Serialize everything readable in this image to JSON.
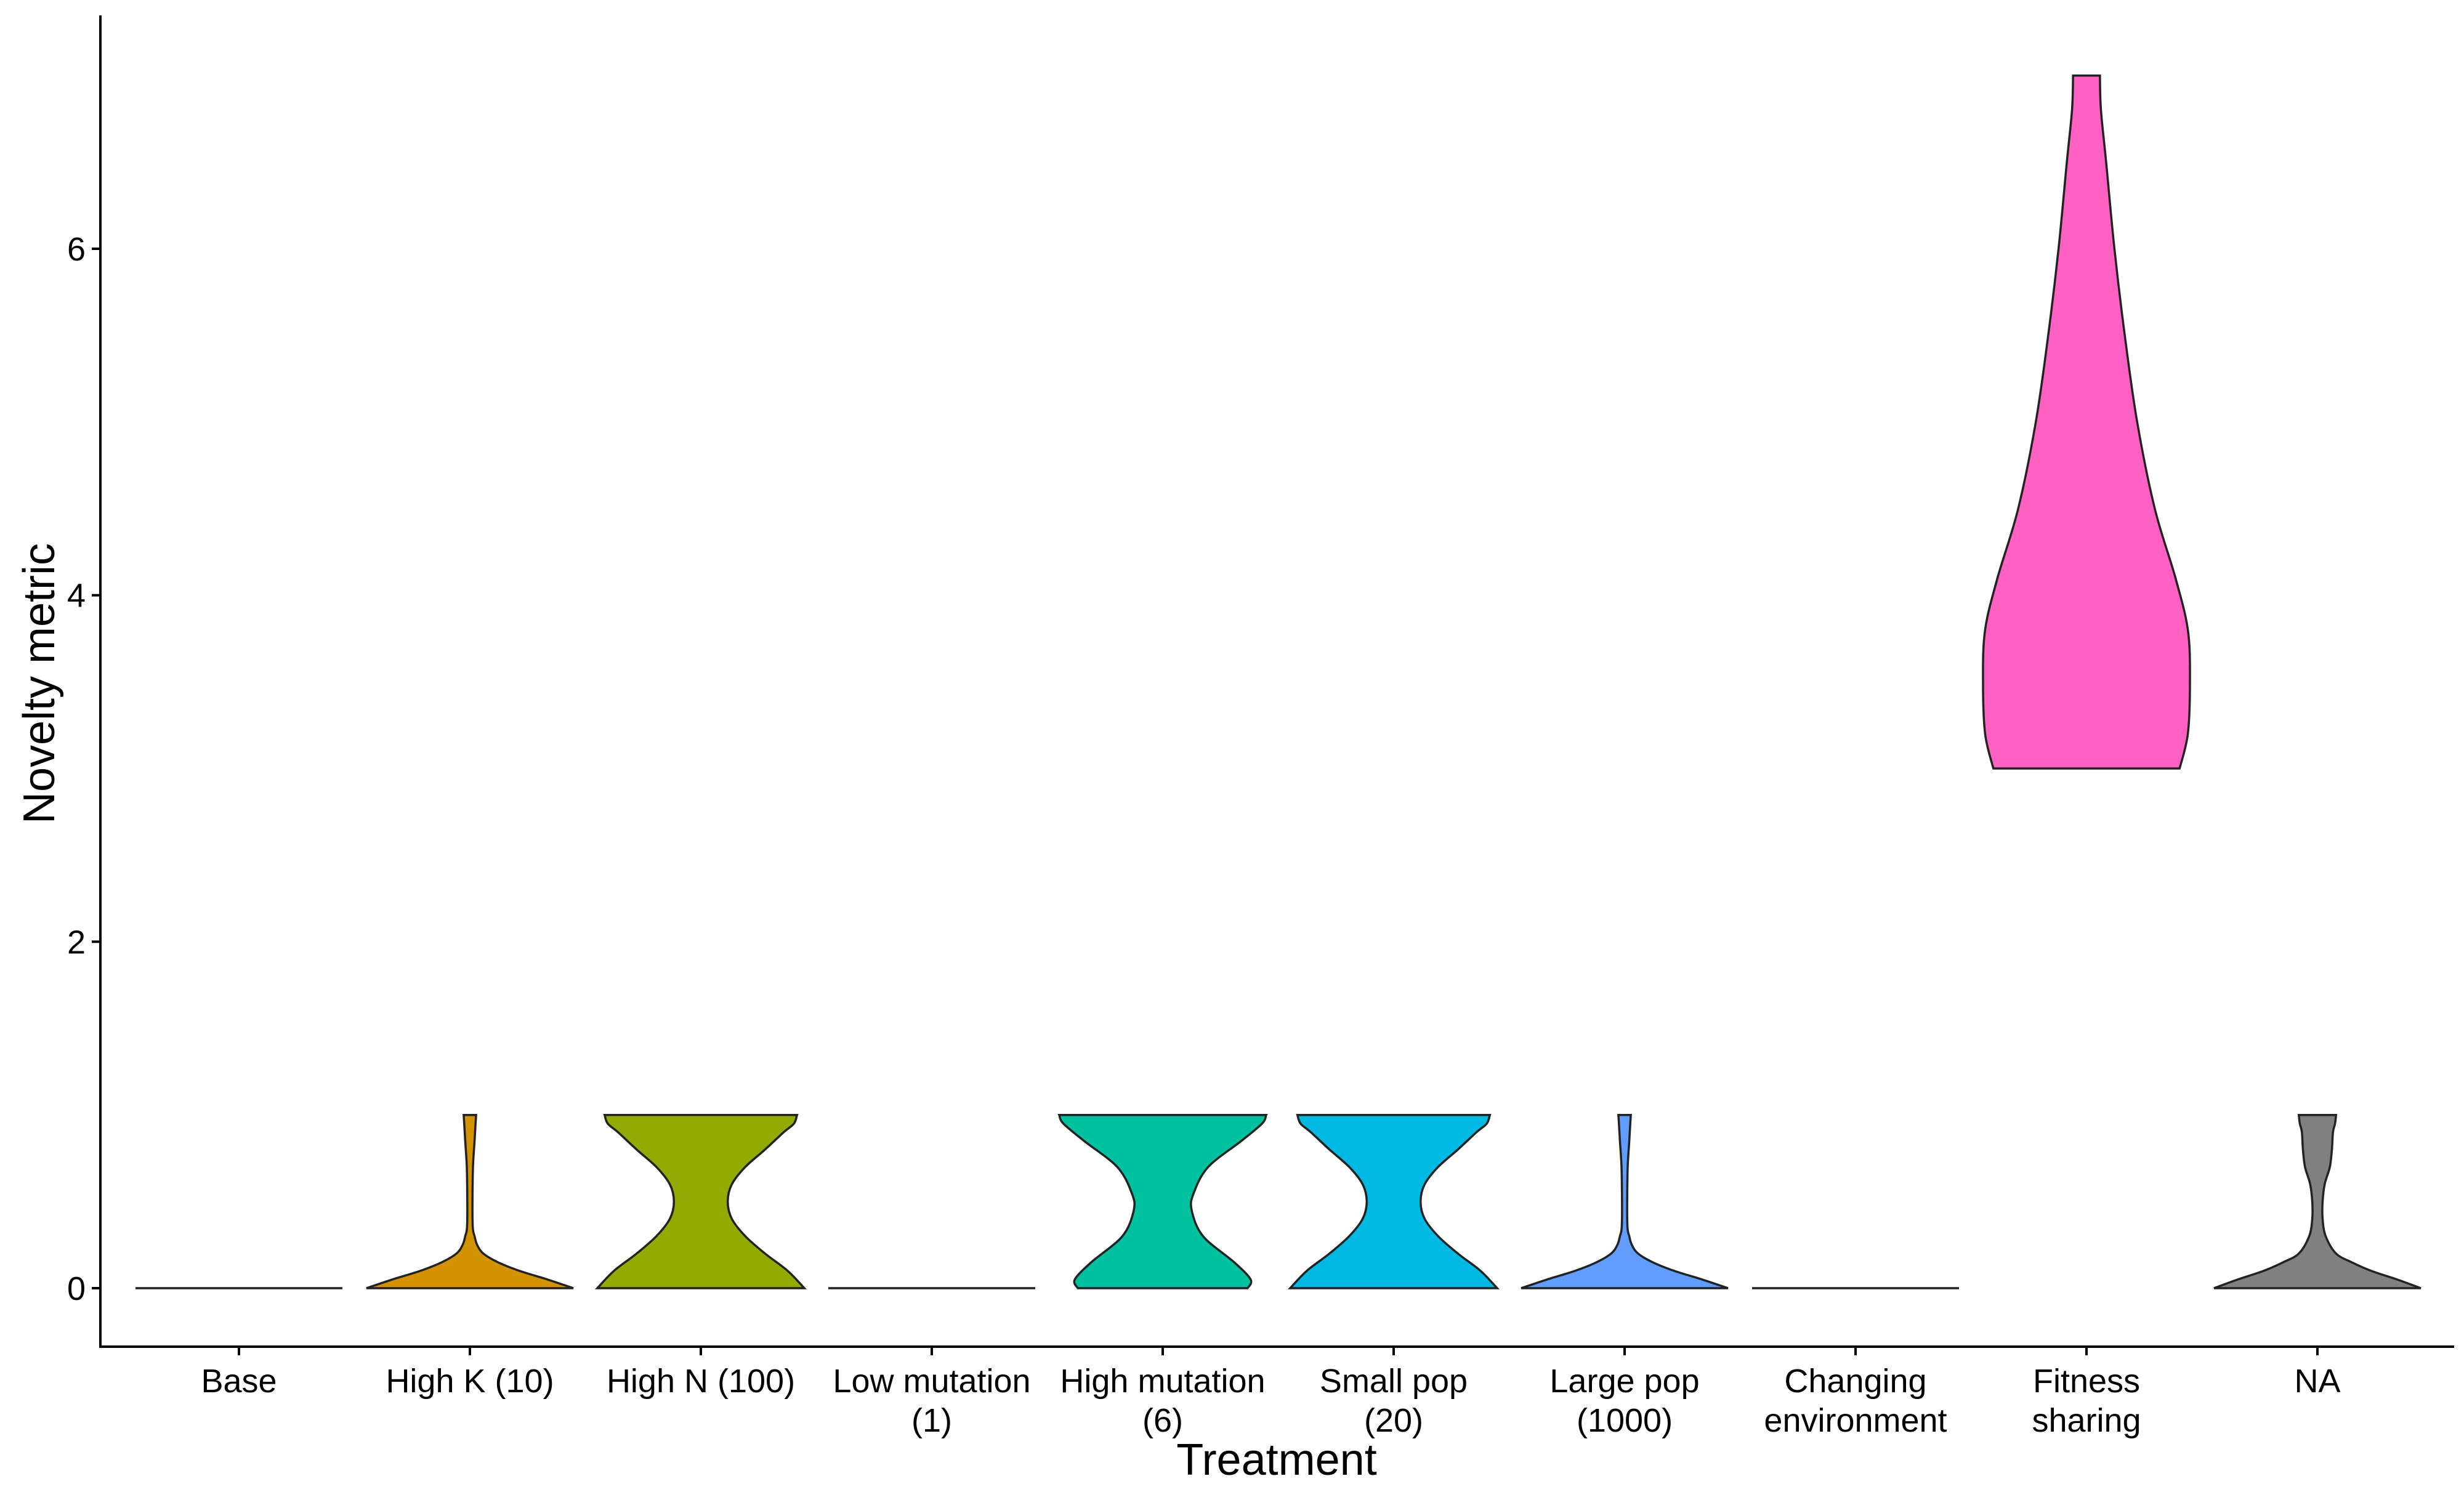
{
  "chart_data": {
    "type": "violin",
    "xlabel": "Treatment",
    "ylabel": "Novelty metric",
    "ylim": [
      -0.34,
      7.35
    ],
    "yticks": [
      0,
      2,
      4,
      6
    ],
    "ytick_labels": [
      "0",
      "2",
      "4",
      "6"
    ],
    "grid": false,
    "legend": "none",
    "categories": [
      {
        "label_lines": [
          "Base"
        ],
        "color": "#F8766D",
        "min": 0,
        "max": 0,
        "density": [
          [
            0,
            1.0
          ]
        ]
      },
      {
        "label_lines": [
          "High K (10)"
        ],
        "color": "#D39200",
        "min": 0,
        "max": 1,
        "density": [
          [
            0,
            1.0
          ],
          [
            0.05,
            0.75
          ],
          [
            0.1,
            0.48
          ],
          [
            0.15,
            0.27
          ],
          [
            0.2,
            0.13
          ],
          [
            0.25,
            0.07
          ],
          [
            0.3,
            0.045
          ],
          [
            0.35,
            0.028
          ],
          [
            0.5,
            0.025
          ],
          [
            0.7,
            0.03
          ],
          [
            0.85,
            0.045
          ],
          [
            0.95,
            0.055
          ],
          [
            1.0,
            0.06
          ]
        ]
      },
      {
        "label_lines": [
          "High N (100)"
        ],
        "color": "#93AA00",
        "min": 0,
        "max": 1,
        "density": [
          [
            0,
            1.0
          ],
          [
            0.1,
            0.84
          ],
          [
            0.2,
            0.62
          ],
          [
            0.3,
            0.43
          ],
          [
            0.4,
            0.3
          ],
          [
            0.5,
            0.26
          ],
          [
            0.6,
            0.3
          ],
          [
            0.7,
            0.43
          ],
          [
            0.8,
            0.62
          ],
          [
            0.9,
            0.8
          ],
          [
            0.95,
            0.9
          ],
          [
            1.0,
            0.93
          ]
        ]
      },
      {
        "label_lines": [
          "Low mutation",
          "(1)"
        ],
        "color": "#00BA38",
        "min": 0,
        "max": 0,
        "density": [
          [
            0,
            1.0
          ]
        ]
      },
      {
        "label_lines": [
          "High mutation",
          "(6)"
        ],
        "color": "#00C19F",
        "min": 0,
        "max": 1,
        "density": [
          [
            0,
            0.82
          ],
          [
            0.05,
            0.85
          ],
          [
            0.15,
            0.69
          ],
          [
            0.3,
            0.39
          ],
          [
            0.45,
            0.28
          ],
          [
            0.55,
            0.3
          ],
          [
            0.7,
            0.44
          ],
          [
            0.85,
            0.76
          ],
          [
            0.95,
            0.96
          ],
          [
            1.0,
            1.0
          ]
        ]
      },
      {
        "label_lines": [
          "Small pop",
          "(20)"
        ],
        "color": "#00B9E3",
        "min": 0,
        "max": 1,
        "density": [
          [
            0,
            1.0
          ],
          [
            0.1,
            0.84
          ],
          [
            0.2,
            0.62
          ],
          [
            0.3,
            0.43
          ],
          [
            0.4,
            0.3
          ],
          [
            0.5,
            0.26
          ],
          [
            0.6,
            0.3
          ],
          [
            0.7,
            0.43
          ],
          [
            0.8,
            0.62
          ],
          [
            0.9,
            0.8
          ],
          [
            0.95,
            0.9
          ],
          [
            1.0,
            0.93
          ]
        ]
      },
      {
        "label_lines": [
          "Large pop",
          "(1000)"
        ],
        "color": "#619CFF",
        "min": 0,
        "max": 1,
        "density": [
          [
            0,
            1.0
          ],
          [
            0.05,
            0.75
          ],
          [
            0.1,
            0.48
          ],
          [
            0.15,
            0.27
          ],
          [
            0.2,
            0.13
          ],
          [
            0.25,
            0.07
          ],
          [
            0.3,
            0.045
          ],
          [
            0.35,
            0.028
          ],
          [
            0.5,
            0.025
          ],
          [
            0.7,
            0.03
          ],
          [
            0.85,
            0.045
          ],
          [
            0.95,
            0.055
          ],
          [
            1.0,
            0.06
          ]
        ]
      },
      {
        "label_lines": [
          "Changing",
          "environment"
        ],
        "color": "#DB72FB",
        "min": 0,
        "max": 0,
        "density": [
          [
            0,
            1.0
          ]
        ]
      },
      {
        "label_lines": [
          "Fitness",
          "sharing"
        ],
        "color": "#FF61C3",
        "min": 3,
        "max": 7,
        "density": [
          [
            3.0,
            0.9
          ],
          [
            3.2,
            0.98
          ],
          [
            3.5,
            1.0
          ],
          [
            3.8,
            0.98
          ],
          [
            4.1,
            0.86
          ],
          [
            4.5,
            0.66
          ],
          [
            5.0,
            0.49
          ],
          [
            5.5,
            0.37
          ],
          [
            6.0,
            0.27
          ],
          [
            6.5,
            0.19
          ],
          [
            6.8,
            0.14
          ],
          [
            7.0,
            0.13
          ]
        ]
      },
      {
        "label_lines": [
          "NA"
        ],
        "color": "#808080",
        "min": 0,
        "max": 1,
        "density": [
          [
            0,
            1.0
          ],
          [
            0.05,
            0.77
          ],
          [
            0.1,
            0.52
          ],
          [
            0.15,
            0.33
          ],
          [
            0.2,
            0.18
          ],
          [
            0.3,
            0.08
          ],
          [
            0.4,
            0.05
          ],
          [
            0.5,
            0.05
          ],
          [
            0.6,
            0.07
          ],
          [
            0.7,
            0.12
          ],
          [
            0.8,
            0.14
          ],
          [
            0.9,
            0.15
          ],
          [
            0.95,
            0.17
          ],
          [
            1.0,
            0.18
          ]
        ]
      }
    ]
  }
}
